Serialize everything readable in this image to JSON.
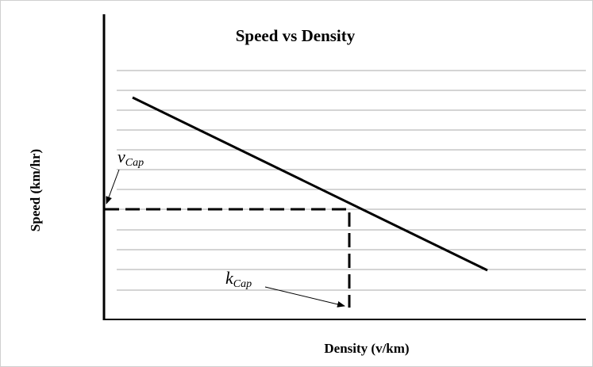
{
  "title": "Speed vs Density",
  "y_axis_label": "Speed (km/hr)",
  "x_axis_label": "Density (v/km)",
  "speed_at_capacity": {
    "symbol": "v",
    "subscript": "Cap"
  },
  "density_at_capacity": {
    "symbol": "k",
    "subscript": "Cap"
  }
}
